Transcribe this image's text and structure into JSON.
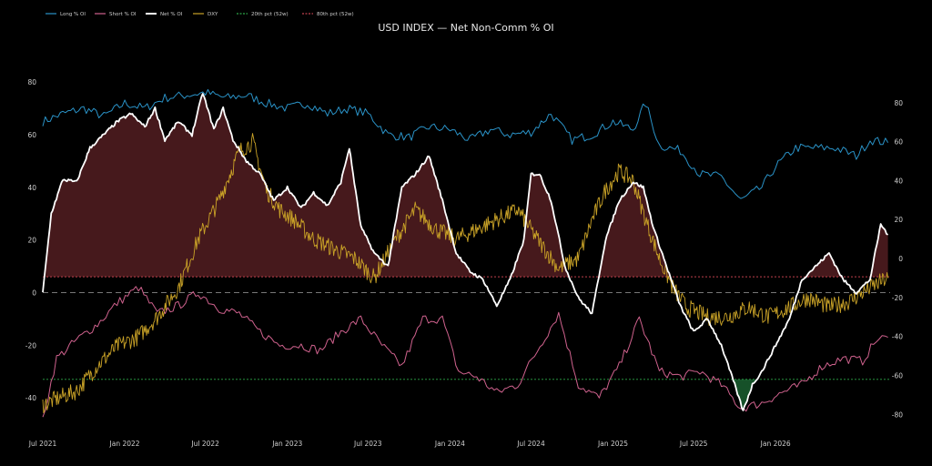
{
  "chart_data": {
    "type": "line",
    "title": "USD INDEX — Net Non-Comm % OI",
    "x_ticks": [
      "Jul 2021",
      "Jan 2022",
      "Jul 2022",
      "Jan 2023",
      "Jul 2023",
      "Jan 2024",
      "Jul 2024",
      "Jan 2025",
      "Jul 2025",
      "Jan 2026"
    ],
    "x_range": [
      "2021-07-01",
      "2026-09-15"
    ],
    "ylim_left": [
      -50,
      87
    ],
    "ylim_right": [
      -85,
      100
    ],
    "yticks_left": [
      80,
      60,
      40,
      20,
      0,
      -20,
      -40
    ],
    "yticks_right": [
      80,
      60,
      40,
      20,
      0,
      -20,
      -40,
      -60,
      -80
    ],
    "grid": false,
    "legend_position": "top-left",
    "pct20": -33,
    "pct80": 6,
    "colors": {
      "long": "#2a93c8",
      "short": "#d0628e",
      "net": "#ffffff",
      "dxy": "#c9a227",
      "pct20": "#2ea84a",
      "pct80": "#c0404e",
      "fill_above": "#4a1a1d",
      "fill_below": "#17552b",
      "zero": "#777777"
    },
    "series": [
      {
        "name": "Long % OI",
        "axis": "left",
        "points": [
          [
            "2021-07-01",
            65
          ],
          [
            "2021-08-15",
            68
          ],
          [
            "2021-10-01",
            70
          ],
          [
            "2021-11-15",
            67
          ],
          [
            "2022-01-01",
            72
          ],
          [
            "2022-02-15",
            70
          ],
          [
            "2022-04-01",
            74
          ],
          [
            "2022-05-15",
            75
          ],
          [
            "2022-07-01",
            76
          ],
          [
            "2022-08-15",
            74
          ],
          [
            "2022-10-01",
            75
          ],
          [
            "2022-11-15",
            72
          ],
          [
            "2023-01-01",
            70
          ],
          [
            "2023-02-15",
            72
          ],
          [
            "2023-04-01",
            68
          ],
          [
            "2023-05-15",
            70
          ],
          [
            "2023-07-01",
            68
          ],
          [
            "2023-08-15",
            60
          ],
          [
            "2023-10-01",
            59
          ],
          [
            "2023-11-15",
            63
          ],
          [
            "2024-01-01",
            62
          ],
          [
            "2024-02-15",
            58
          ],
          [
            "2024-04-01",
            62
          ],
          [
            "2024-05-15",
            60
          ],
          [
            "2024-07-01",
            61
          ],
          [
            "2024-08-15",
            68
          ],
          [
            "2024-10-01",
            58
          ],
          [
            "2024-11-15",
            60
          ],
          [
            "2025-01-01",
            65
          ],
          [
            "2025-02-15",
            62
          ],
          [
            "2025-03-15",
            72
          ],
          [
            "2025-04-15",
            56
          ],
          [
            "2025-06-01",
            54
          ],
          [
            "2025-07-15",
            45
          ],
          [
            "2025-09-01",
            44
          ],
          [
            "2025-10-15",
            35
          ],
          [
            "2025-12-01",
            40
          ],
          [
            "2026-01-01",
            48
          ],
          [
            "2026-02-15",
            55
          ],
          [
            "2026-04-01",
            55
          ],
          [
            "2026-05-15",
            55
          ],
          [
            "2026-07-01",
            52
          ],
          [
            "2026-08-01",
            58
          ],
          [
            "2026-09-10",
            57
          ]
        ]
      },
      {
        "name": "Short % OI",
        "axis": "left",
        "points": [
          [
            "2021-07-01",
            -48
          ],
          [
            "2021-08-01",
            -25
          ],
          [
            "2021-09-15",
            -18
          ],
          [
            "2021-11-01",
            -12
          ],
          [
            "2021-12-15",
            -4
          ],
          [
            "2022-02-01",
            2
          ],
          [
            "2022-03-15",
            -8
          ],
          [
            "2022-05-01",
            -5
          ],
          [
            "2022-06-15",
            0
          ],
          [
            "2022-08-01",
            -6
          ],
          [
            "2022-09-15",
            -8
          ],
          [
            "2022-11-01",
            -15
          ],
          [
            "2022-12-15",
            -20
          ],
          [
            "2023-02-01",
            -20
          ],
          [
            "2023-03-15",
            -22
          ],
          [
            "2023-05-01",
            -15
          ],
          [
            "2023-06-15",
            -10
          ],
          [
            "2023-08-01",
            -20
          ],
          [
            "2023-09-15",
            -28
          ],
          [
            "2023-11-01",
            -10
          ],
          [
            "2023-12-15",
            -10
          ],
          [
            "2024-01-20",
            -30
          ],
          [
            "2024-03-01",
            -32
          ],
          [
            "2024-04-15",
            -38
          ],
          [
            "2024-06-01",
            -35
          ],
          [
            "2024-07-15",
            -22
          ],
          [
            "2024-09-01",
            -8
          ],
          [
            "2024-10-15",
            -35
          ],
          [
            "2024-12-01",
            -40
          ],
          [
            "2025-01-15",
            -28
          ],
          [
            "2025-03-01",
            -10
          ],
          [
            "2025-04-15",
            -30
          ],
          [
            "2025-06-01",
            -32
          ],
          [
            "2025-07-15",
            -30
          ],
          [
            "2025-09-01",
            -35
          ],
          [
            "2025-10-15",
            -44
          ],
          [
            "2025-12-01",
            -42
          ],
          [
            "2026-01-15",
            -38
          ],
          [
            "2026-03-01",
            -35
          ],
          [
            "2026-04-15",
            -28
          ],
          [
            "2026-06-01",
            -25
          ],
          [
            "2026-07-15",
            -26
          ],
          [
            "2026-08-15",
            -18
          ],
          [
            "2026-09-10",
            -17
          ]
        ]
      },
      {
        "name": "Net % OI",
        "axis": "left",
        "points": [
          [
            "2021-07-01",
            0
          ],
          [
            "2021-07-20",
            30
          ],
          [
            "2021-08-15",
            43
          ],
          [
            "2021-09-15",
            42
          ],
          [
            "2021-10-15",
            55
          ],
          [
            "2021-11-15",
            60
          ],
          [
            "2021-12-15",
            65
          ],
          [
            "2022-01-15",
            68
          ],
          [
            "2022-02-15",
            63
          ],
          [
            "2022-03-10",
            70
          ],
          [
            "2022-04-01",
            58
          ],
          [
            "2022-05-01",
            65
          ],
          [
            "2022-06-01",
            60
          ],
          [
            "2022-06-25",
            76
          ],
          [
            "2022-07-20",
            62
          ],
          [
            "2022-08-10",
            70
          ],
          [
            "2022-09-01",
            58
          ],
          [
            "2022-10-01",
            50
          ],
          [
            "2022-11-01",
            45
          ],
          [
            "2022-12-01",
            35
          ],
          [
            "2023-01-01",
            40
          ],
          [
            "2023-02-01",
            32
          ],
          [
            "2023-03-01",
            38
          ],
          [
            "2023-04-01",
            33
          ],
          [
            "2023-05-01",
            42
          ],
          [
            "2023-05-20",
            55
          ],
          [
            "2023-06-15",
            25
          ],
          [
            "2023-07-15",
            15
          ],
          [
            "2023-08-15",
            10
          ],
          [
            "2023-09-15",
            40
          ],
          [
            "2023-10-15",
            45
          ],
          [
            "2023-11-15",
            52
          ],
          [
            "2023-12-15",
            35
          ],
          [
            "2024-01-15",
            15
          ],
          [
            "2024-02-15",
            8
          ],
          [
            "2024-03-15",
            5
          ],
          [
            "2024-04-15",
            -5
          ],
          [
            "2024-05-15",
            5
          ],
          [
            "2024-06-15",
            20
          ],
          [
            "2024-07-01",
            45
          ],
          [
            "2024-07-20",
            45
          ],
          [
            "2024-08-15",
            35
          ],
          [
            "2024-09-15",
            10
          ],
          [
            "2024-10-15",
            -2
          ],
          [
            "2024-11-15",
            -8
          ],
          [
            "2024-12-15",
            20
          ],
          [
            "2025-01-15",
            35
          ],
          [
            "2025-02-15",
            42
          ],
          [
            "2025-03-10",
            40
          ],
          [
            "2025-04-01",
            25
          ],
          [
            "2025-05-01",
            10
          ],
          [
            "2025-06-01",
            -5
          ],
          [
            "2025-07-01",
            -15
          ],
          [
            "2025-08-01",
            -10
          ],
          [
            "2025-09-01",
            -20
          ],
          [
            "2025-10-01",
            -35
          ],
          [
            "2025-10-20",
            -45
          ],
          [
            "2025-11-10",
            -35
          ],
          [
            "2025-12-01",
            -30
          ],
          [
            "2026-01-01",
            -20
          ],
          [
            "2026-02-01",
            -10
          ],
          [
            "2026-03-01",
            5
          ],
          [
            "2026-04-01",
            10
          ],
          [
            "2026-05-01",
            15
          ],
          [
            "2026-06-01",
            5
          ],
          [
            "2026-07-01",
            0
          ],
          [
            "2026-08-01",
            5
          ],
          [
            "2026-08-25",
            26
          ],
          [
            "2026-09-10",
            22
          ]
        ]
      },
      {
        "name": "DXY",
        "axis": "right",
        "points": [
          [
            "2021-07-01",
            -75
          ],
          [
            "2021-08-01",
            -72
          ],
          [
            "2021-09-15",
            -68
          ],
          [
            "2021-11-01",
            -55
          ],
          [
            "2021-12-15",
            -45
          ],
          [
            "2022-02-01",
            -40
          ],
          [
            "2022-03-15",
            -30
          ],
          [
            "2022-05-01",
            -15
          ],
          [
            "2022-06-15",
            10
          ],
          [
            "2022-08-01",
            30
          ],
          [
            "2022-09-15",
            55
          ],
          [
            "2022-10-15",
            60
          ],
          [
            "2022-11-15",
            35
          ],
          [
            "2022-12-15",
            25
          ],
          [
            "2023-01-15",
            20
          ],
          [
            "2023-03-01",
            10
          ],
          [
            "2023-04-15",
            5
          ],
          [
            "2023-06-01",
            0
          ],
          [
            "2023-07-15",
            -10
          ],
          [
            "2023-09-01",
            10
          ],
          [
            "2023-10-15",
            25
          ],
          [
            "2023-12-01",
            15
          ],
          [
            "2024-01-15",
            10
          ],
          [
            "2024-03-01",
            15
          ],
          [
            "2024-04-15",
            20
          ],
          [
            "2024-06-01",
            25
          ],
          [
            "2024-07-15",
            10
          ],
          [
            "2024-09-01",
            -5
          ],
          [
            "2024-10-15",
            0
          ],
          [
            "2024-11-15",
            20
          ],
          [
            "2024-12-15",
            35
          ],
          [
            "2025-01-15",
            45
          ],
          [
            "2025-02-15",
            40
          ],
          [
            "2025-03-15",
            20
          ],
          [
            "2025-04-15",
            0
          ],
          [
            "2025-05-15",
            -15
          ],
          [
            "2025-06-15",
            -25
          ],
          [
            "2025-08-01",
            -30
          ],
          [
            "2025-09-15",
            -30
          ],
          [
            "2025-11-01",
            -25
          ],
          [
            "2025-12-15",
            -30
          ],
          [
            "2026-02-01",
            -25
          ],
          [
            "2026-03-15",
            -20
          ],
          [
            "2026-05-01",
            -25
          ],
          [
            "2026-06-15",
            -22
          ],
          [
            "2026-08-01",
            -15
          ],
          [
            "2026-09-10",
            -10
          ]
        ]
      },
      {
        "name": "20th pct (52w)",
        "axis": "left",
        "constant": -33
      },
      {
        "name": "80th pct (52w)",
        "axis": "left",
        "constant": 6
      }
    ],
    "legend": [
      "Long % OI",
      "Short % OI",
      "Net % OI",
      "DXY",
      "20th pct (52w)",
      "80th pct (52w)"
    ]
  }
}
